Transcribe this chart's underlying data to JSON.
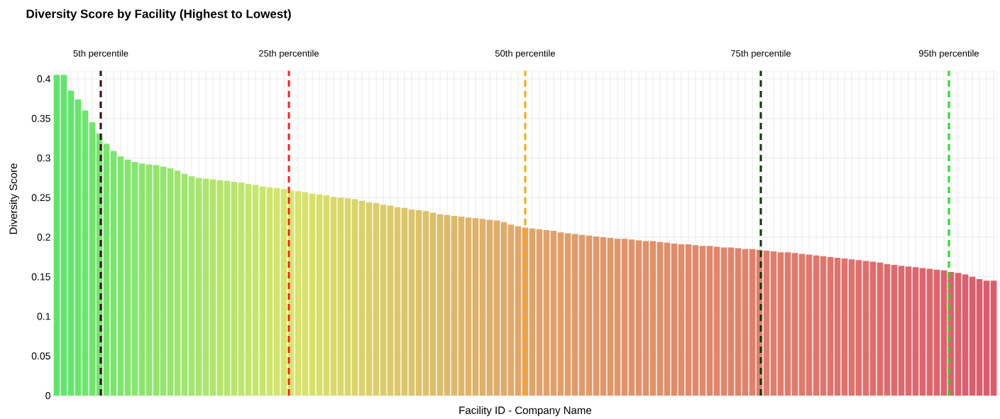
{
  "chart_data": {
    "type": "bar",
    "title": "Diversity Score by Facility (Highest to Lowest)",
    "xlabel": "Facility ID - Company Name",
    "ylabel": "Diversity Score",
    "categories": [
      null,
      null,
      null,
      null,
      null,
      null,
      null,
      null,
      null,
      null,
      null,
      null,
      null,
      null,
      null,
      null,
      null,
      null,
      null,
      null,
      null,
      null,
      null,
      null,
      null,
      null,
      null,
      null,
      null,
      null,
      null,
      null,
      null,
      null,
      null,
      null,
      null,
      null,
      null,
      null,
      null,
      null,
      null,
      null,
      null,
      null,
      null,
      null,
      null,
      null,
      null,
      null,
      null,
      null,
      null,
      null,
      null,
      null,
      null,
      null,
      null,
      null,
      null,
      null,
      null,
      null,
      null,
      null,
      null,
      null,
      null,
      null,
      null,
      null,
      null,
      null,
      null,
      null,
      null,
      null,
      null,
      null,
      null,
      null,
      null,
      null,
      null,
      null,
      null,
      null,
      null,
      null,
      null,
      null,
      null,
      null,
      null,
      null,
      null,
      null,
      null,
      null,
      null,
      null,
      null,
      null,
      null,
      null,
      null,
      null,
      null,
      null,
      null,
      null,
      null,
      null,
      null,
      null,
      null,
      null,
      null,
      null,
      null,
      null,
      null,
      null,
      null,
      null,
      null,
      null,
      null,
      null,
      null
    ],
    "values": [
      0.405,
      0.405,
      0.385,
      0.374,
      0.36,
      0.345,
      0.331,
      0.318,
      0.309,
      0.302,
      0.298,
      0.295,
      0.293,
      0.292,
      0.291,
      0.289,
      0.287,
      0.284,
      0.28,
      0.277,
      0.275,
      0.274,
      0.273,
      0.272,
      0.271,
      0.27,
      0.269,
      0.267,
      0.266,
      0.264,
      0.263,
      0.262,
      0.261,
      0.259,
      0.258,
      0.257,
      0.255,
      0.254,
      0.253,
      0.251,
      0.25,
      0.249,
      0.248,
      0.246,
      0.244,
      0.243,
      0.241,
      0.24,
      0.238,
      0.237,
      0.235,
      0.234,
      0.233,
      0.231,
      0.229,
      0.228,
      0.227,
      0.226,
      0.225,
      0.224,
      0.223,
      0.222,
      0.221,
      0.219,
      0.216,
      0.214,
      0.212,
      0.211,
      0.21,
      0.209,
      0.208,
      0.206,
      0.205,
      0.204,
      0.203,
      0.202,
      0.201,
      0.2,
      0.199,
      0.198,
      0.198,
      0.197,
      0.196,
      0.195,
      0.195,
      0.194,
      0.193,
      0.192,
      0.191,
      0.191,
      0.19,
      0.189,
      0.189,
      0.188,
      0.187,
      0.187,
      0.186,
      0.185,
      0.185,
      0.184,
      0.183,
      0.182,
      0.181,
      0.181,
      0.18,
      0.179,
      0.178,
      0.177,
      0.176,
      0.175,
      0.174,
      0.173,
      0.172,
      0.171,
      0.17,
      0.169,
      0.168,
      0.166,
      0.165,
      0.164,
      0.163,
      0.162,
      0.161,
      0.16,
      0.159,
      0.158,
      0.156,
      0.155,
      0.153,
      0.15,
      0.147,
      0.145,
      0.145
    ],
    "colors": [
      "#5ce66c",
      "#60e66c",
      "#63e66c",
      "#67e66c",
      "#6be66c",
      "#6fe66c",
      "#73e66c",
      "#76e66c",
      "#7ae66c",
      "#7ee66c",
      "#82e66c",
      "#85e66c",
      "#89e66c",
      "#8de66c",
      "#91e66c",
      "#94e66c",
      "#98e66c",
      "#9ce66c",
      "#a0e66c",
      "#a3e66c",
      "#a7e66c",
      "#abe66c",
      "#afe66c",
      "#b2e66c",
      "#b6e66c",
      "#bae66c",
      "#bee66c",
      "#c2e66c",
      "#c5e66c",
      "#c9e66c",
      "#cde66c",
      "#d1e66c",
      "#d4e66c",
      "#d8e66c",
      "#d8e46a",
      "#d8e26a",
      "#d9e06a",
      "#d9de6a",
      "#d9dc6a",
      "#d9da6a",
      "#dad86a",
      "#dad66a",
      "#dad46a",
      "#dad26a",
      "#dbd06a",
      "#dbce6a",
      "#dbcc6a",
      "#dbca6a",
      "#dcc86a",
      "#dcc66a",
      "#dcc46a",
      "#dcc26a",
      "#ddc06a",
      "#ddbe6a",
      "#ddbc6a",
      "#ddba6a",
      "#deb86a",
      "#deb66a",
      "#deb46a",
      "#deb26a",
      "#dfb06a",
      "#dfae6a",
      "#dfac6a",
      "#dfaa6a",
      "#e0a86a",
      "#e0a66a",
      "#e0a46a",
      "#e0a36a",
      "#e0a26a",
      "#e0a16a",
      "#e0a06a",
      "#e09e6a",
      "#e09d6a",
      "#e09c6a",
      "#e09b6a",
      "#e09a6a",
      "#e0996a",
      "#e0986a",
      "#e0976a",
      "#e0956a",
      "#e0946a",
      "#e0936a",
      "#e0926a",
      "#e0916a",
      "#e0906a",
      "#e08f6a",
      "#e08e6a",
      "#e08c6a",
      "#e08b6a",
      "#e08a6a",
      "#e0896a",
      "#e0886a",
      "#e0876a",
      "#e0866a",
      "#e0856a",
      "#e0846a",
      "#e0826a",
      "#e0816a",
      "#e0806a",
      "#e07f6a",
      "#e07e6c",
      "#e07d6c",
      "#e07c6c",
      "#e07b6c",
      "#e07a6c",
      "#e0786c",
      "#e0776c",
      "#e0766c",
      "#e0756c",
      "#e0746c",
      "#e0736c",
      "#e0726c",
      "#e0716c",
      "#e06f6c",
      "#e06e6c",
      "#e06d6c",
      "#de6c6c",
      "#de6b6c",
      "#de6a6c",
      "#de696c",
      "#de686c",
      "#de666c",
      "#de656c",
      "#de646c",
      "#de636c",
      "#de626c",
      "#de616c",
      "#de606c",
      "#dc5f6c",
      "#dc5d6c",
      "#dc5c6c",
      "#dc5b6c",
      "#dc5a6c"
    ],
    "ylim": [
      0,
      0.41
    ],
    "yticks": [
      0,
      0.05,
      0.1,
      0.15,
      0.2,
      0.25,
      0.3,
      0.35,
      0.4
    ],
    "grid": true,
    "annotations": [
      "5th percentile",
      "25th percentile",
      "50th percentile",
      "75th percentile",
      "95th percentile"
    ]
  }
}
